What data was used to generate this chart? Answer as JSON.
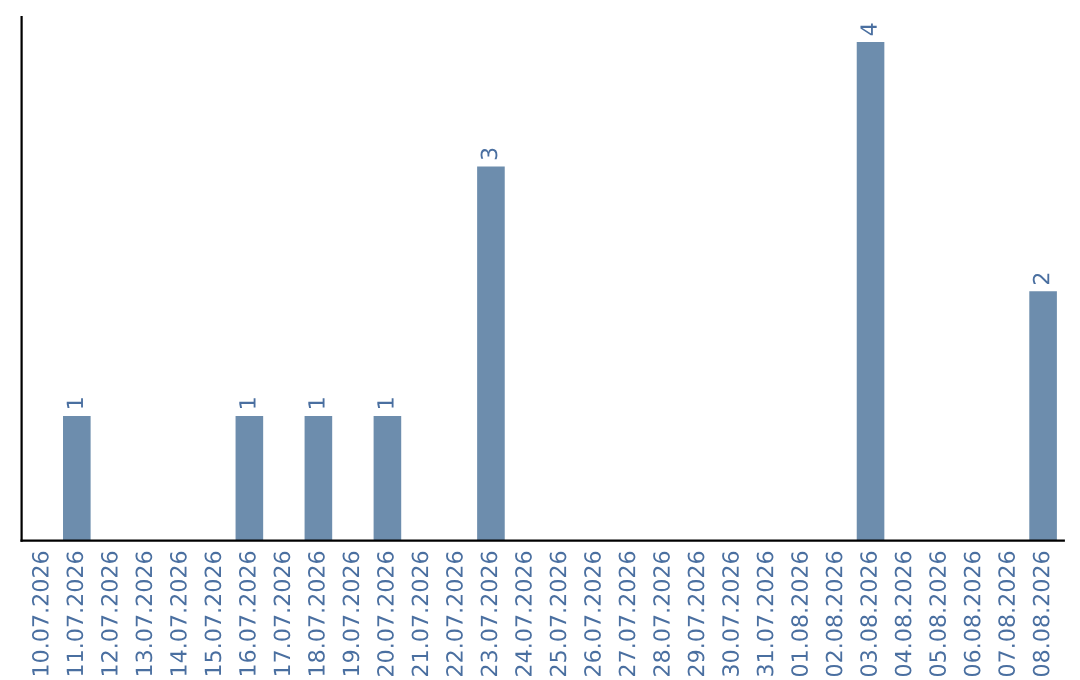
{
  "chart_data": {
    "type": "bar",
    "categories": [
      "10.07.2026",
      "11.07.2026",
      "12.07.2026",
      "13.07.2026",
      "14.07.2026",
      "15.07.2026",
      "16.07.2026",
      "17.07.2026",
      "18.07.2026",
      "19.07.2026",
      "20.07.2026",
      "21.07.2026",
      "22.07.2026",
      "23.07.2026",
      "24.07.2026",
      "25.07.2026",
      "26.07.2026",
      "27.07.2026",
      "28.07.2026",
      "29.07.2026",
      "30.07.2026",
      "31.07.2026",
      "01.08.2026",
      "02.08.2026",
      "03.08.2026",
      "04.08.2026",
      "05.08.2026",
      "06.08.2026",
      "07.08.2026",
      "08.08.2026"
    ],
    "values": [
      0,
      1,
      0,
      0,
      0,
      0,
      1,
      0,
      1,
      0,
      1,
      0,
      0,
      3,
      0,
      0,
      0,
      0,
      0,
      0,
      0,
      0,
      0,
      0,
      4,
      0,
      0,
      0,
      0,
      2
    ],
    "value_labels": [
      null,
      "1",
      null,
      null,
      null,
      null,
      "1",
      null,
      "1",
      null,
      "1",
      null,
      null,
      "3",
      null,
      null,
      null,
      null,
      null,
      null,
      null,
      null,
      null,
      null,
      "4",
      null,
      null,
      null,
      null,
      "2"
    ],
    "color": "#6d8dad",
    "tick_labels": "x",
    "grid": false,
    "legend": false
  }
}
